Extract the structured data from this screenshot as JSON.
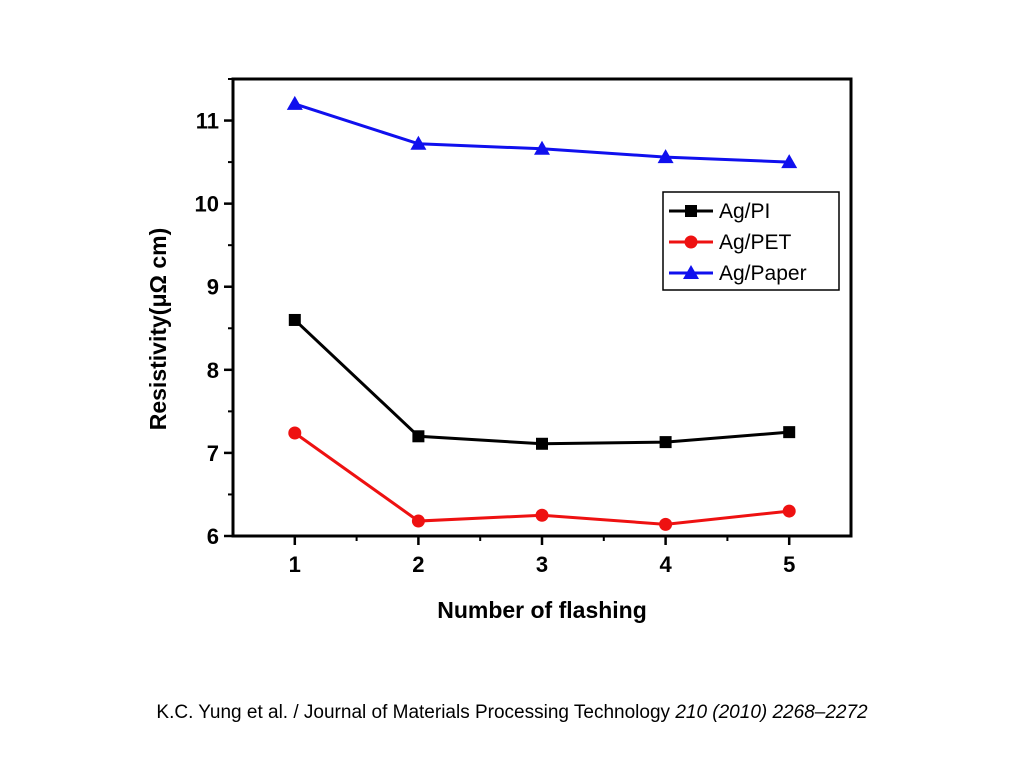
{
  "chart_data": {
    "type": "line",
    "x": [
      1,
      2,
      3,
      4,
      5
    ],
    "xlabel": "Number of flashing",
    "ylabel": "Resistivity(μΩ cm)",
    "xlim": [
      0.5,
      5.5
    ],
    "ylim": [
      6,
      11.5
    ],
    "xticks": [
      "1",
      "2",
      "3",
      "4",
      "5"
    ],
    "yticks": [
      "6",
      "7",
      "8",
      "9",
      "10",
      "11"
    ],
    "grid": false,
    "legend_position": "top-right",
    "series": [
      {
        "name": "Ag/PI",
        "color": "#000000",
        "marker": "square",
        "values": [
          8.6,
          7.2,
          7.11,
          7.13,
          7.25
        ]
      },
      {
        "name": "Ag/PET",
        "color": "#ee1111",
        "marker": "circle",
        "values": [
          7.24,
          6.18,
          6.25,
          6.14,
          6.3
        ]
      },
      {
        "name": "Ag/Paper",
        "color": "#1010ee",
        "marker": "triangle",
        "values": [
          11.2,
          10.72,
          10.66,
          10.56,
          10.5
        ]
      }
    ]
  },
  "citation": {
    "authors": "K.C. Yung et al. / Journal of Materials Processing Technology ",
    "volume": "210 (2010) 2268–2272"
  }
}
